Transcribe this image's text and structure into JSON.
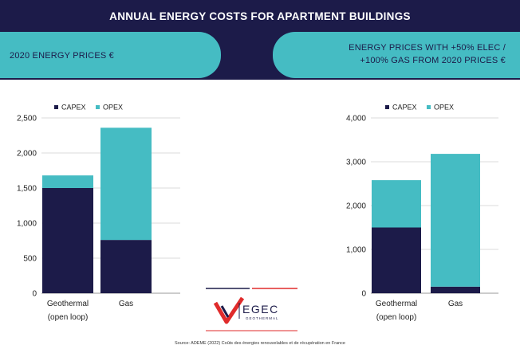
{
  "header": {
    "title": "ANNUAL ENERGY COSTS FOR APARTMENT BUILDINGS",
    "left_banner": "2020 ENERGY PRICES €",
    "right_banner_line1": "ENERGY PRICES WITH +50% ELEC /",
    "right_banner_line2": "+100% GAS FROM 2020 PRICES €"
  },
  "colors": {
    "navy": "#1c1b49",
    "teal": "#45bcc3"
  },
  "chart_data": [
    {
      "type": "bar",
      "stacked": true,
      "categories": [
        "Geothermal|(open loop)",
        "Gas"
      ],
      "series": [
        {
          "name": "CAPEX",
          "values": [
            1500,
            760
          ],
          "color": "#1c1b49"
        },
        {
          "name": "OPEX",
          "values": [
            180,
            1600
          ],
          "color": "#45bcc3"
        }
      ],
      "ylim": [
        0,
        2500
      ],
      "yticks": [
        0,
        500,
        1000,
        1500,
        2000,
        2500
      ],
      "ytick_labels": [
        "0",
        "500",
        "1,000",
        "1,500",
        "2,000",
        "2,500"
      ],
      "legend": "top",
      "grid": true
    },
    {
      "type": "bar",
      "stacked": true,
      "categories": [
        "Geothermal|(open loop)",
        "Gas"
      ],
      "series": [
        {
          "name": "CAPEX",
          "values": [
            1500,
            150
          ],
          "color": "#1c1b49"
        },
        {
          "name": "OPEX",
          "values": [
            1080,
            3030
          ],
          "color": "#45bcc3"
        }
      ],
      "ylim": [
        0,
        4000
      ],
      "yticks": [
        0,
        1000,
        2000,
        3000,
        4000
      ],
      "ytick_labels": [
        "0",
        "1,000",
        "2,000",
        "3,000",
        "4,000"
      ],
      "legend": "top",
      "grid": true
    }
  ],
  "logo": {
    "brand": "EGEC",
    "sub": "GEOTHERMAL"
  },
  "footer": {
    "source": "Source: ADEME (2022) Coûts des énergies renouvelables et de récupération en France"
  }
}
